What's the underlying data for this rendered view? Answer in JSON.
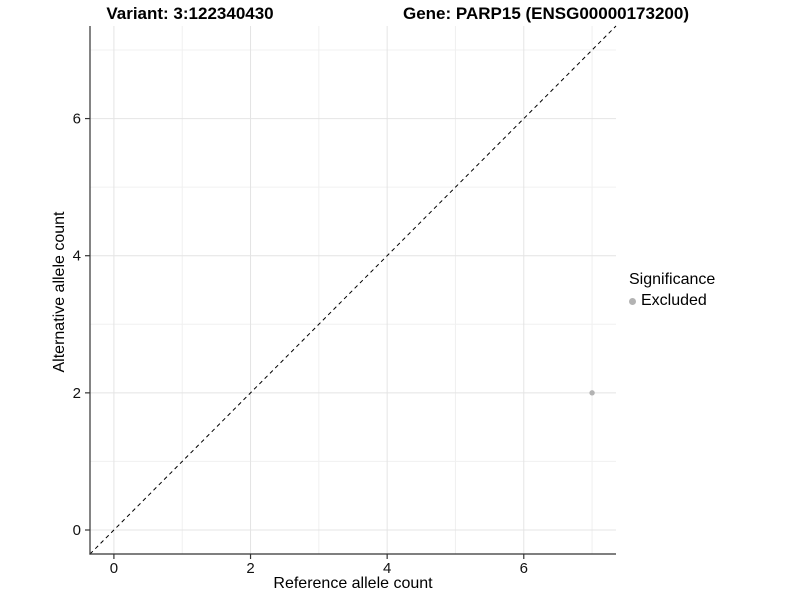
{
  "chart_data": {
    "type": "scatter",
    "title_left": "Variant: 3:122340430",
    "title_right": "Gene: PARP15 (ENSG00000173200)",
    "xlabel": "Reference allele count",
    "ylabel": "Alternative allele count",
    "xlim": [
      -0.35,
      7.35
    ],
    "ylim": [
      -0.35,
      7.35
    ],
    "xticks": [
      0,
      2,
      4,
      6
    ],
    "yticks": [
      0,
      2,
      4,
      6
    ],
    "x_minor_gridlines": [
      1,
      3,
      5,
      7
    ],
    "y_minor_gridlines": [
      1,
      3,
      5,
      7
    ],
    "grid": true,
    "identity_line": {
      "slope": 1,
      "intercept": 0,
      "style": "dashed",
      "color": "#000000"
    },
    "series": [
      {
        "name": "Excluded",
        "color": "#b3b3b3",
        "points": [
          {
            "x": 7,
            "y": 2
          }
        ]
      }
    ],
    "legend": {
      "title": "Significance",
      "position": "right",
      "entries": [
        {
          "label": "Excluded",
          "color": "#b3b3b3"
        }
      ]
    }
  },
  "colors": {
    "background": "#ffffff",
    "grid_major": "#e4e4e4",
    "grid_minor": "#f0f0f0",
    "axis_line": "#333333",
    "tick_mark": "#333333",
    "tick_text": "#111111",
    "title_text": "#000000",
    "point": "#b3b3b3"
  }
}
